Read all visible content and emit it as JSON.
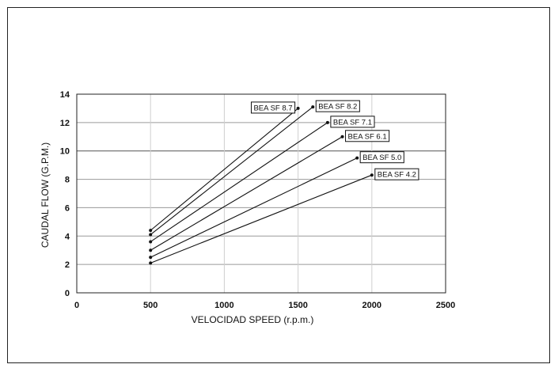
{
  "chart_data": {
    "type": "line",
    "xlabel": "VELOCIDAD  SPEED (r.p.m.)",
    "ylabel": "CAUDAL  FLOW (G.P.M.)",
    "xlim": [
      0,
      2500
    ],
    "ylim": [
      0,
      14
    ],
    "xticks": [
      0,
      500,
      1000,
      1500,
      2000,
      2500
    ],
    "yticks": [
      0,
      2,
      4,
      6,
      8,
      10,
      12,
      14
    ],
    "grid": true,
    "series": [
      {
        "name": "BEA SF 8.7",
        "x": [
          500,
          1500
        ],
        "y": [
          4.4,
          13.0
        ]
      },
      {
        "name": "BEA SF 8.2",
        "x": [
          500,
          1600
        ],
        "y": [
          4.1,
          13.1
        ]
      },
      {
        "name": "BEA SF 7.1",
        "x": [
          500,
          1700
        ],
        "y": [
          3.6,
          12.0
        ]
      },
      {
        "name": "BEA SF 6.1",
        "x": [
          500,
          1800
        ],
        "y": [
          3.0,
          11.0
        ]
      },
      {
        "name": "BEA SF 5.0",
        "x": [
          500,
          1900
        ],
        "y": [
          2.5,
          9.5
        ]
      },
      {
        "name": "BEA SF 4.2",
        "x": [
          500,
          2000
        ],
        "y": [
          2.1,
          8.3
        ]
      }
    ]
  }
}
